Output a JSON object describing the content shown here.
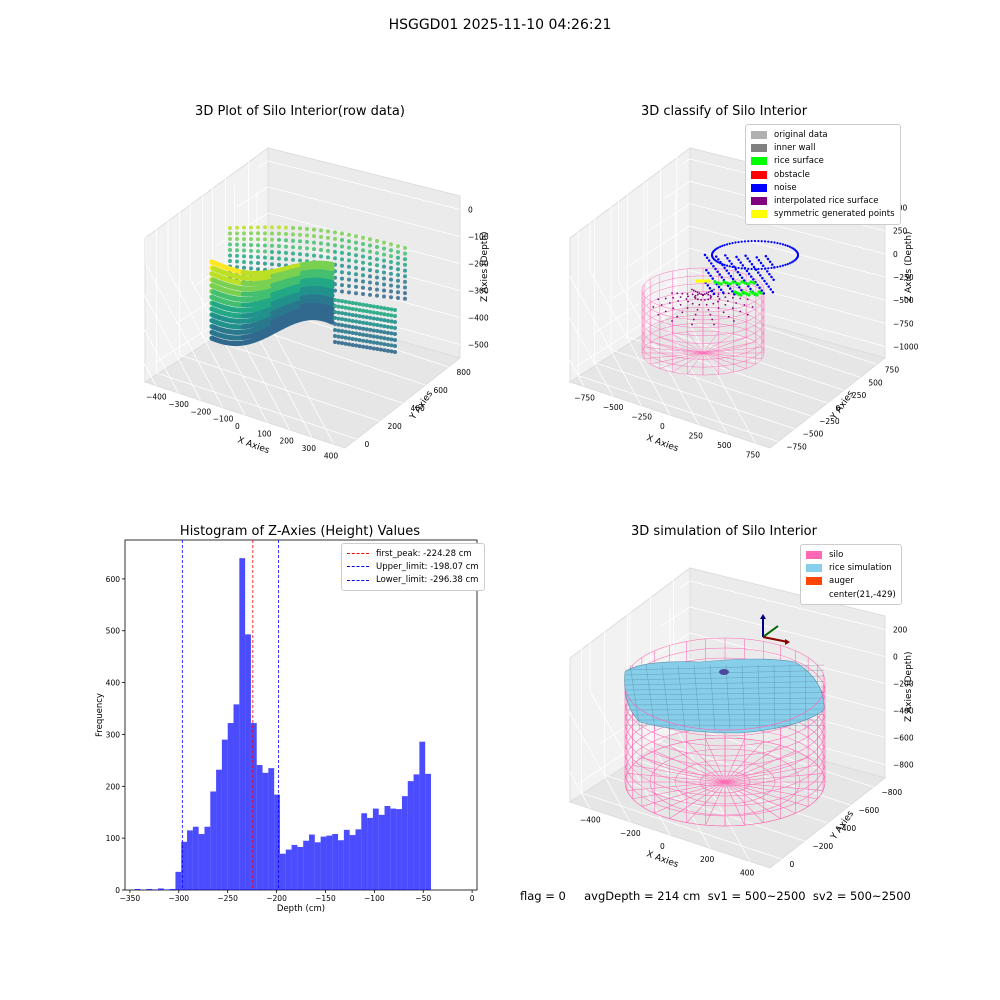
{
  "suptitle": "HSGGD01 2025-11-10 04:26:21",
  "panel1": {
    "title": "3D Plot of Silo Interior(row data)",
    "xlabel": "X Axies",
    "ylabel": "Y Axies",
    "zlabel": "Z Axies (Depth)",
    "xticks": [
      "−400",
      "−300",
      "−200",
      "−100",
      "0",
      "100",
      "200",
      "300",
      "400"
    ],
    "yticks": [
      "0",
      "200",
      "400",
      "600",
      "800"
    ],
    "zticks": [
      "0",
      "−100",
      "−200",
      "−300",
      "−400",
      "−500"
    ]
  },
  "panel2": {
    "title": "3D classify of Silo Interior",
    "xlabel": "X Axies",
    "ylabel": "Y Axies",
    "zlabel": "Z Axies (Depth)",
    "xticks": [
      "−750",
      "−500",
      "−250",
      "0",
      "250",
      "500",
      "750"
    ],
    "yticks": [
      "−750",
      "−500",
      "−250",
      "0",
      "250",
      "500",
      "750"
    ],
    "zticks": [
      "500",
      "250",
      "0",
      "−250",
      "−500",
      "−750",
      "−1000"
    ],
    "legend": [
      {
        "label": "original data",
        "color": "#b0b0b0"
      },
      {
        "label": "inner wall",
        "color": "#808080"
      },
      {
        "label": "rice surface",
        "color": "#00ff00"
      },
      {
        "label": "obstacle",
        "color": "#ff0000"
      },
      {
        "label": "noise",
        "color": "#0000ff"
      },
      {
        "label": "interpolated rice surface",
        "color": "#800080"
      },
      {
        "label": "symmetric generated points",
        "color": "#ffff00"
      }
    ]
  },
  "panel4": {
    "title": "3D simulation of Silo Interior",
    "xlabel": "X Axies",
    "ylabel": "Y Axies",
    "zlabel": "Z Axies (Depth)",
    "xticks": [
      "−400",
      "−200",
      "0",
      "200",
      "400"
    ],
    "yticks": [
      "0",
      "−200",
      "−400",
      "−600",
      "−800"
    ],
    "zticks": [
      "200",
      "0",
      "−200",
      "−400",
      "−600",
      "−800"
    ],
    "legend": [
      {
        "label": "silo",
        "color": "#ff69b4"
      },
      {
        "label": "rice simulation",
        "color": "#87ceeb"
      },
      {
        "label": "auger",
        "color": "#ff4500"
      },
      {
        "label": "center(21,-429)",
        "color": ""
      }
    ]
  },
  "chart_data": {
    "type": "bar",
    "title": "Histogram of Z-Axies (Height) Values",
    "xlabel": "Depth (cm)",
    "ylabel": "Frequency",
    "xlim": [
      -355,
      5
    ],
    "ylim": [
      0,
      675
    ],
    "xticks": [
      -350,
      -300,
      -250,
      -200,
      -150,
      -100,
      -50,
      0
    ],
    "yticks": [
      0,
      100,
      200,
      300,
      400,
      500,
      600
    ],
    "bin_start": -345,
    "bin_width": 5.94,
    "values": [
      2,
      0,
      2,
      1,
      3,
      1,
      2,
      35,
      93,
      115,
      122,
      108,
      122,
      190,
      232,
      290,
      322,
      358,
      640,
      493,
      322,
      241,
      226,
      235,
      184,
      70,
      78,
      87,
      83,
      95,
      107,
      92,
      103,
      105,
      108,
      96,
      116,
      106,
      117,
      148,
      139,
      157,
      145,
      162,
      157,
      156,
      181,
      210,
      223,
      286,
      224
    ],
    "bar_color": "#0000ff",
    "vlines": [
      {
        "x": -224.28,
        "color": "#ff0000",
        "label": "first_peak: -224.28 cm"
      },
      {
        "x": -198.07,
        "color": "#0000ff",
        "label": "Upper_limit: -198.07 cm"
      },
      {
        "x": -296.38,
        "color": "#0000ff",
        "label": "Lower_limit: -296.38 cm"
      }
    ],
    "legend_position": "top-right"
  },
  "footer": "flag = 0     avgDepth = 214 cm  sv1 = 500~2500  sv2 = 500~2500"
}
